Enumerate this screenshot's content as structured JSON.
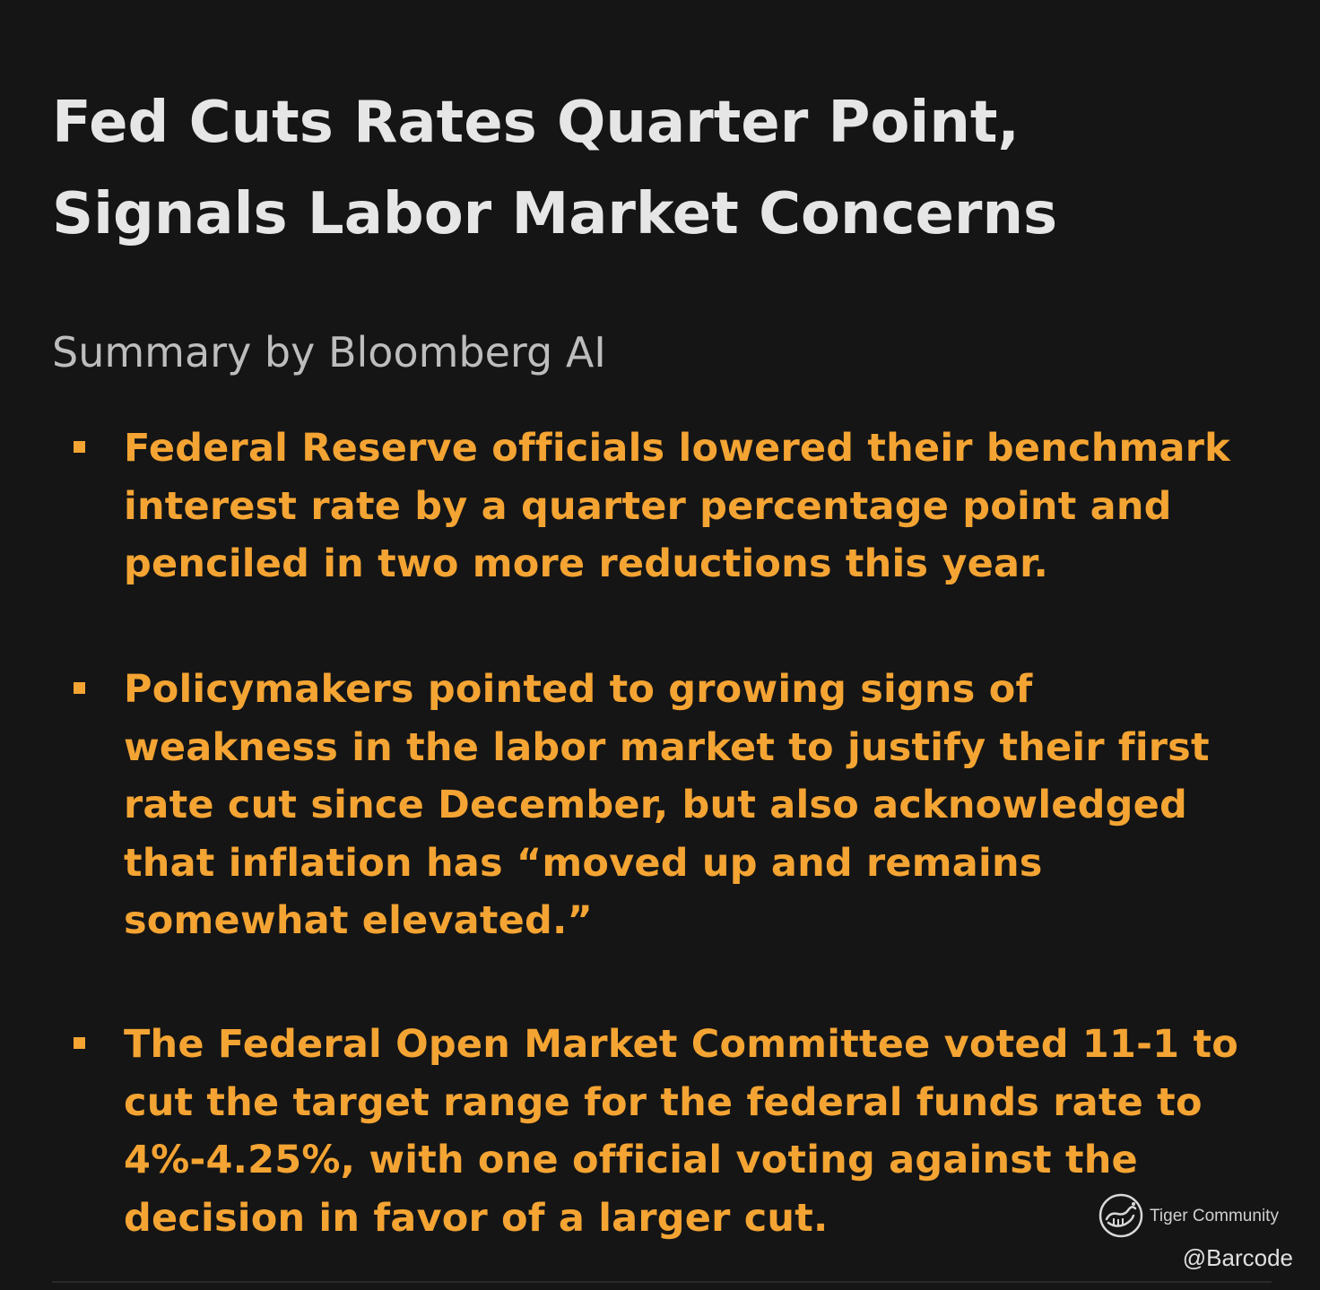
{
  "article": {
    "headline": "Fed Cuts Rates Quarter Point, Signals Labor Market Concerns",
    "summary_label": "Summary by Bloomberg AI",
    "bullets": [
      "Federal Reserve officials lowered their benchmark interest rate by a quarter percentage point and penciled in two more reductions this year.",
      "Policymakers pointed to growing signs of weakness in the labor market to justify their first rate cut since December, but also acknowledged that inflation has “moved up and remains somewhat elevated.”",
      "The Federal Open Market Committee voted 11-1 to cut the target range for the federal funds rate to 4%-4.25%, with one official voting against the decision in favor of a larger cut."
    ]
  },
  "watermark": {
    "logo_icon": "tiger-community-logo-icon",
    "community": "Tiger Community",
    "handle": "@Barcode"
  },
  "colors": {
    "background": "#151515",
    "headline": "#e6e6e6",
    "summary_label": "#bdbdbd",
    "accent": "#f4a433"
  }
}
